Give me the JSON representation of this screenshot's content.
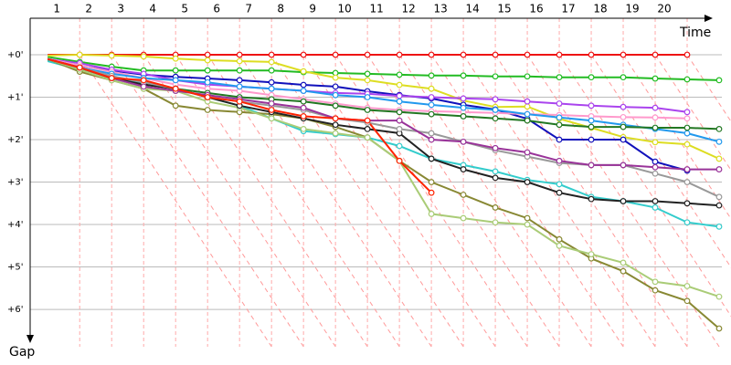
{
  "chart_data": {
    "type": "line",
    "x_label": "Time",
    "y_label": "Gap",
    "x": [
      0,
      1,
      2,
      3,
      4,
      5,
      6,
      7,
      8,
      9,
      10,
      11,
      12,
      13,
      14,
      15,
      16,
      17,
      18,
      19,
      20,
      21
    ],
    "xlim": [
      -0.55,
      21.2
    ],
    "xticks": [
      1,
      2,
      3,
      4,
      5,
      6,
      7,
      8,
      9,
      10,
      11,
      12,
      13,
      14,
      15,
      16,
      17,
      18,
      19,
      20
    ],
    "ylim": [
      -0.86,
      6.88
    ],
    "yticks": [
      {
        "value": 0,
        "label": "+0'"
      },
      {
        "value": 1,
        "label": "+1'"
      },
      {
        "value": 2,
        "label": "+2'"
      },
      {
        "value": 3,
        "label": "+3'"
      },
      {
        "value": 4,
        "label": "+4'"
      },
      {
        "value": 5,
        "label": "+5'"
      },
      {
        "value": 6,
        "label": "+6'"
      }
    ],
    "grid": true,
    "series": [
      {
        "color": "#ee1111",
        "values": [
          0,
          0,
          0,
          0,
          0,
          0,
          0,
          0,
          0,
          0,
          0,
          0,
          0,
          0,
          0,
          0,
          0,
          0,
          0,
          0,
          0,
          null
        ]
      },
      {
        "color": "#22bb22",
        "values": [
          0.05,
          0.17,
          0.28,
          0.37,
          0.37,
          0.37,
          0.37,
          0.37,
          0.41,
          0.43,
          0.45,
          0.47,
          0.49,
          0.49,
          0.51,
          0.51,
          0.53,
          0.53,
          0.53,
          0.56,
          0.58,
          0.6
        ]
      },
      {
        "color": "#dddd22",
        "values": [
          0.02,
          0,
          0.02,
          0.04,
          0.09,
          0.13,
          0.15,
          0.17,
          0.39,
          0.54,
          0.6,
          0.71,
          0.8,
          1.08,
          1.23,
          1.22,
          1.51,
          1.72,
          1.94,
          2.06,
          2.11,
          2.45
        ]
      },
      {
        "color": "#1111bb",
        "values": [
          0.1,
          0.26,
          0.37,
          0.47,
          0.52,
          0.56,
          0.6,
          0.65,
          0.71,
          0.75,
          0.86,
          0.95,
          1.03,
          1.18,
          1.29,
          1.51,
          2.0,
          2.0,
          2.0,
          2.52,
          2.73,
          null
        ]
      },
      {
        "color": "#aa44ee",
        "values": [
          0.1,
          0.2,
          0.35,
          0.45,
          0.6,
          0.7,
          0.75,
          0.8,
          0.85,
          0.9,
          0.92,
          0.97,
          1.0,
          1.03,
          1.05,
          1.1,
          1.15,
          1.2,
          1.23,
          1.25,
          1.35,
          null
        ]
      },
      {
        "color": "#ff99cc",
        "values": [
          0.1,
          0.25,
          0.4,
          0.55,
          0.7,
          0.8,
          0.85,
          0.95,
          1.05,
          1.15,
          1.25,
          1.3,
          1.33,
          1.35,
          1.37,
          1.4,
          1.42,
          1.45,
          1.47,
          1.48,
          1.5,
          null
        ]
      },
      {
        "color": "#2299ee",
        "values": [
          0.1,
          0.3,
          0.45,
          0.55,
          0.6,
          0.65,
          0.75,
          0.8,
          0.85,
          0.95,
          1.0,
          1.1,
          1.18,
          1.25,
          1.3,
          1.4,
          1.48,
          1.55,
          1.65,
          1.75,
          1.85,
          2.05
        ]
      },
      {
        "color": "#227722",
        "values": [
          0.12,
          0.35,
          0.55,
          0.7,
          0.8,
          0.9,
          1.0,
          1.05,
          1.1,
          1.2,
          1.3,
          1.35,
          1.4,
          1.45,
          1.5,
          1.55,
          1.65,
          1.7,
          1.7,
          1.72,
          1.72,
          1.75
        ]
      },
      {
        "color": "#33cccc",
        "values": [
          0.15,
          0.35,
          0.55,
          0.65,
          0.8,
          1.0,
          1.2,
          1.5,
          1.8,
          1.87,
          1.95,
          2.15,
          2.45,
          2.6,
          2.75,
          2.95,
          3.05,
          3.35,
          3.45,
          3.6,
          3.95,
          4.05
        ]
      },
      {
        "color": "#888833",
        "values": [
          0.1,
          0.4,
          0.6,
          0.8,
          1.2,
          1.3,
          1.35,
          1.4,
          1.5,
          1.7,
          1.95,
          2.5,
          3.0,
          3.3,
          3.6,
          3.85,
          4.35,
          4.8,
          5.1,
          5.55,
          5.8,
          6.45
        ]
      },
      {
        "color": "#aacc77",
        "values": [
          0.1,
          0.35,
          0.6,
          0.8,
          0.85,
          1.1,
          1.25,
          1.5,
          1.75,
          1.85,
          1.95,
          2.5,
          3.75,
          3.85,
          3.95,
          4.0,
          4.5,
          4.7,
          4.9,
          5.35,
          5.45,
          5.7
        ]
      },
      {
        "color": "#222222",
        "values": [
          0.1,
          0.3,
          0.55,
          0.7,
          0.8,
          1.0,
          1.2,
          1.35,
          1.5,
          1.65,
          1.75,
          1.85,
          2.45,
          2.7,
          2.9,
          3.0,
          3.25,
          3.4,
          3.45,
          3.45,
          3.5,
          3.55
        ]
      },
      {
        "color": "#999999",
        "values": [
          0.1,
          0.3,
          0.5,
          0.65,
          0.8,
          1.0,
          1.1,
          1.2,
          1.3,
          1.5,
          1.6,
          1.75,
          1.85,
          2.05,
          2.25,
          2.4,
          2.55,
          2.6,
          2.6,
          2.8,
          3.0,
          3.35
        ]
      },
      {
        "color": "#993399",
        "values": [
          0.1,
          0.3,
          0.55,
          0.75,
          0.85,
          0.95,
          1.05,
          1.15,
          1.25,
          1.5,
          1.55,
          1.55,
          2.0,
          2.05,
          2.2,
          2.3,
          2.5,
          2.6,
          2.6,
          2.65,
          2.7,
          2.7
        ]
      },
      {
        "color": "#ff2200",
        "values": [
          0.1,
          0.3,
          0.55,
          0.6,
          0.8,
          1.0,
          1.1,
          1.3,
          1.45,
          1.5,
          1.55,
          2.5,
          3.25,
          null,
          null,
          null,
          null,
          null,
          null,
          null,
          null,
          null
        ]
      }
    ]
  }
}
